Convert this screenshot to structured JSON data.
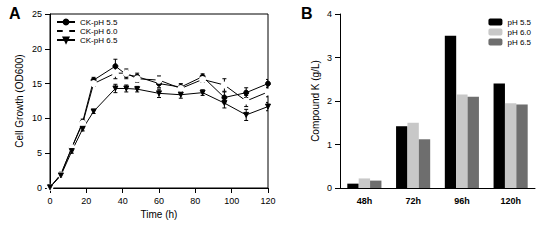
{
  "chart_data": [
    {
      "type": "line",
      "title": "A",
      "x_label": "Time (h)",
      "y_label": "Cell Growth (OD600)",
      "x": [
        0,
        6,
        12,
        18,
        24,
        36,
        42,
        48,
        60,
        72,
        84,
        96,
        108,
        120
      ],
      "xlim": [
        0,
        120
      ],
      "xticks": [
        0,
        20,
        40,
        60,
        80,
        100,
        120
      ],
      "ylim": [
        0,
        25
      ],
      "yticks": [
        0,
        5,
        10,
        15,
        20,
        25
      ],
      "legend": "upper left",
      "series": [
        {
          "name": "CK-pH 5.5",
          "color": "#000000",
          "marker": "circle",
          "values": [
            0.1,
            2.0,
            5.8,
            9.5,
            15.5,
            17.5,
            16.3,
            16.0,
            15.0,
            14.5,
            16.0,
            13.0,
            13.7,
            15.0
          ],
          "errors": [
            0.1,
            0.2,
            0.3,
            0.4,
            0.4,
            1.0,
            0.6,
            0.5,
            0.6,
            0.5,
            0.4,
            0.8,
            0.7,
            0.6
          ]
        },
        {
          "name": "CK-pH 6.0",
          "color": "#000000",
          "marker": "open_circle",
          "values": [
            0.1,
            1.9,
            5.8,
            9.3,
            15.0,
            16.5,
            16.5,
            15.7,
            15.5,
            14.3,
            15.6,
            14.8,
            12.5,
            13.8
          ],
          "errors": [
            0.1,
            0.2,
            0.3,
            0.4,
            0.4,
            0.8,
            0.6,
            0.5,
            0.6,
            0.5,
            0.4,
            0.9,
            0.8,
            0.7
          ]
        },
        {
          "name": "CK-pH 6.5",
          "color": "#000000",
          "marker": "triangle_down",
          "values": [
            0.1,
            1.8,
            5.3,
            8.5,
            11.0,
            14.3,
            14.3,
            14.2,
            13.6,
            13.4,
            13.7,
            12.2,
            10.5,
            11.7
          ],
          "errors": [
            0.1,
            0.2,
            0.3,
            0.3,
            0.3,
            0.6,
            0.5,
            0.4,
            0.6,
            0.5,
            0.4,
            0.7,
            0.8,
            0.6
          ]
        }
      ]
    },
    {
      "type": "bar",
      "title": "B",
      "y_label": "Compound K (g/L)",
      "categories": [
        "48h",
        "72h",
        "96h",
        "120h"
      ],
      "ylim": [
        0,
        4
      ],
      "yticks": [
        0,
        1,
        2,
        3,
        4
      ],
      "legend": "upper right",
      "series": [
        {
          "name": "pH 5.5",
          "color": "#000000",
          "values": [
            0.1,
            1.42,
            3.5,
            2.4
          ]
        },
        {
          "name": "pH 6.0",
          "color": "#c8c8c8",
          "values": [
            0.22,
            1.5,
            2.15,
            1.95
          ]
        },
        {
          "name": "pH 6.5",
          "color": "#6e6e6e",
          "values": [
            0.17,
            1.12,
            2.1,
            1.92
          ]
        }
      ]
    }
  ]
}
